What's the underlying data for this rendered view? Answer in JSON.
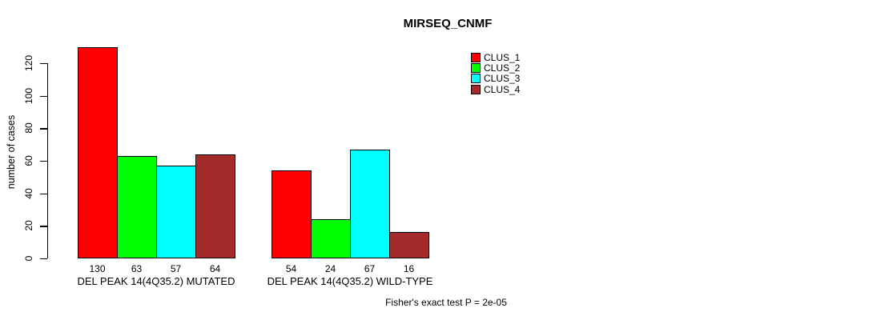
{
  "title": "MIRSEQ_CNMF",
  "footer": "Fisher's exact test P = 2e-05",
  "y_axis": {
    "label": "number of cases",
    "ticks": [
      0,
      20,
      40,
      60,
      80,
      100,
      120
    ]
  },
  "legend": {
    "position": "top-right",
    "items": [
      {
        "label": "CLUS_1",
        "color": "#FF0000"
      },
      {
        "label": "CLUS_2",
        "color": "#00FF00"
      },
      {
        "label": "CLUS_3",
        "color": "#00FFFF"
      },
      {
        "label": "CLUS_4",
        "color": "#A52A2A"
      }
    ]
  },
  "chart_data": {
    "type": "bar",
    "title": "MIRSEQ_CNMF",
    "xlabel": "",
    "ylabel": "number of cases",
    "ylim": [
      0,
      130
    ],
    "grid": false,
    "legend_position": "top-right",
    "categories": [
      "DEL PEAK 14(4Q35.2) MUTATED",
      "DEL PEAK 14(4Q35.2) WILD-TYPE"
    ],
    "series": [
      {
        "name": "CLUS_1",
        "color": "#FF0000",
        "values": [
          130,
          54
        ]
      },
      {
        "name": "CLUS_2",
        "color": "#00FF00",
        "values": [
          63,
          24
        ]
      },
      {
        "name": "CLUS_3",
        "color": "#00FFFF",
        "values": [
          57,
          67
        ]
      },
      {
        "name": "CLUS_4",
        "color": "#A52A2A",
        "values": [
          64,
          16
        ]
      }
    ],
    "bar_value_labels": [
      [
        130,
        63,
        57,
        64
      ],
      [
        54,
        24,
        67,
        16
      ]
    ],
    "annotation": "Fisher's exact test P = 2e-05"
  }
}
